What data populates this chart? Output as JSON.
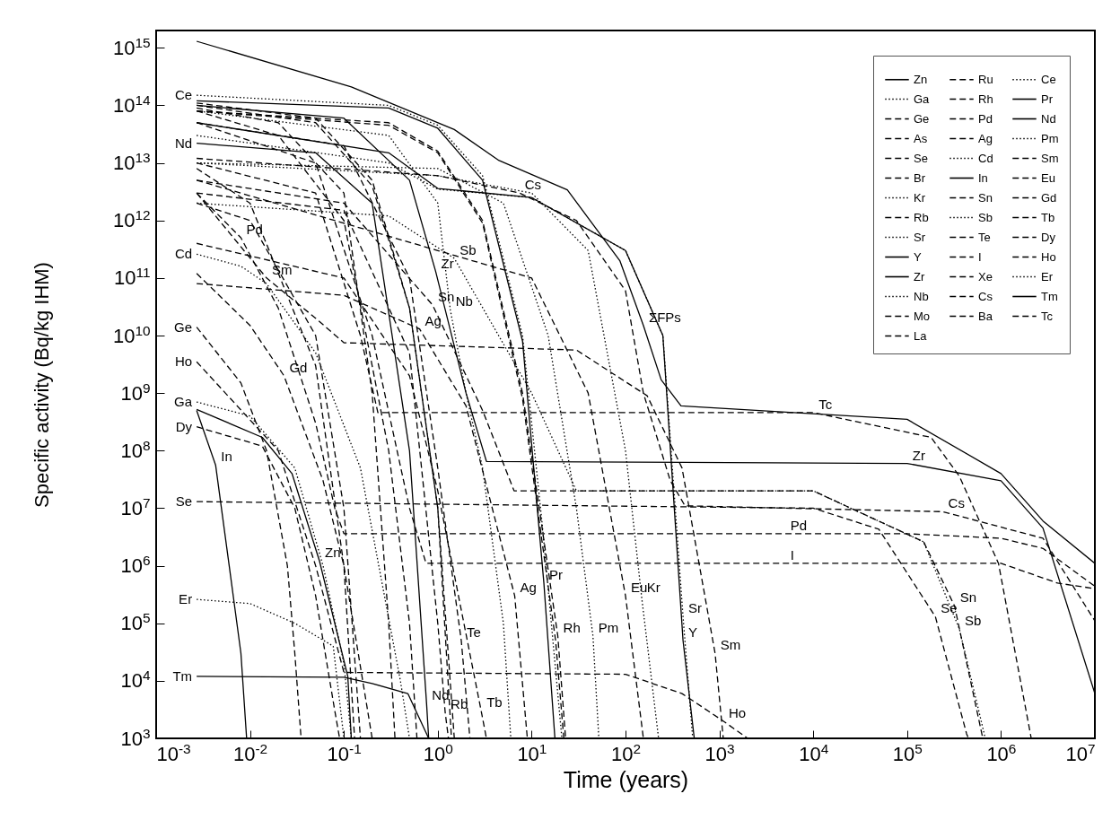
{
  "chart_data": {
    "type": "line",
    "xlabel": "Time (years)",
    "ylabel": "Specific activity (Bq/kg IHM)",
    "log": "xy",
    "legend": "top right",
    "xlim": [
      0.001,
      10000000
    ],
    "ylim": [
      1000,
      2000000000000000.0
    ],
    "xticks": [
      {
        "value": 0.001,
        "label": "10$^{-3}$"
      },
      {
        "value": 0.01,
        "label": "10$^{-2}$"
      },
      {
        "value": 0.1,
        "label": "10$^{-1}$"
      },
      {
        "value": 1,
        "label": "10$^{0}$"
      },
      {
        "value": 10,
        "label": "10$^{1}$"
      },
      {
        "value": 100,
        "label": "10$^{2}$"
      },
      {
        "value": 1000,
        "label": "10$^{3}$"
      },
      {
        "value": 10000,
        "label": "10$^{4}$"
      },
      {
        "value": 100000,
        "label": "10$^{5}$"
      },
      {
        "value": 1000000,
        "label": "10$^{6}$"
      },
      {
        "value": 10000000,
        "label": "10$^{7}$"
      }
    ],
    "yticks": [
      {
        "value": 1000,
        "label": "10$^{3}$"
      },
      {
        "value": 10000,
        "label": "10$^{4}$"
      },
      {
        "value": 100000,
        "label": "10$^{5}$"
      },
      {
        "value": 1000000,
        "label": "10$^{6}$"
      },
      {
        "value": 10000000,
        "label": "10$^{7}$"
      },
      {
        "value": 100000000,
        "label": "10$^{8}$"
      },
      {
        "value": 1000000000,
        "label": "10$^{9}$"
      },
      {
        "value": 10000000000,
        "label": "10$^{10}$"
      },
      {
        "value": 100000000000,
        "label": "10$^{11}$"
      },
      {
        "value": 1000000000000,
        "label": "10$^{12}$"
      },
      {
        "value": 10000000000000,
        "label": "10$^{13}$"
      },
      {
        "value": 100000000000000,
        "label": "10$^{14}$"
      },
      {
        "value": 1000000000000000,
        "label": "10$^{15}$"
      }
    ],
    "series": [
      {
        "name": "Zn",
        "color": "#000000",
        "line_style": "solid",
        "x": [
          0.0027,
          0.0135,
          0.028,
          0.055,
          0.11,
          0.12
        ],
        "values": [
          520000000.0,
          170000000.0,
          40000000.0,
          1200000.0,
          12000.0,
          1000
        ]
      },
      {
        "name": "Ga",
        "color": "#000000",
        "line_style": "dotted",
        "x": [
          0.0027,
          0.01,
          0.03,
          0.06,
          0.1,
          0.12
        ],
        "values": [
          700000000.0,
          400000000.0,
          50000000.0,
          1000000.0,
          20000.0,
          1000
        ]
      },
      {
        "name": "Ge",
        "color": "#000000",
        "line_style": "dashed",
        "x": [
          0.0027,
          0.008,
          0.015,
          0.025,
          0.03,
          0.035
        ],
        "values": [
          14000000000.0,
          1500000000.0,
          100000000.0,
          1000000.0,
          30000.0,
          1000
        ]
      },
      {
        "name": "As",
        "color": "#000000",
        "line_style": "dashed",
        "x": [
          0.0027,
          0.01,
          0.05,
          0.1,
          0.15
        ],
        "values": [
          2000000000000.0,
          1000000000000.0,
          10000000000.0,
          10000000.0,
          1000
        ]
      },
      {
        "name": "Se",
        "color": "#000000",
        "line_style": "dashed",
        "x": [
          0.0027,
          10000,
          50000,
          200000,
          430000,
          450000
        ],
        "values": [
          13000000.0,
          10000000.0,
          4300000.0,
          130000.0,
          1200,
          1000
        ]
      },
      {
        "name": "Br",
        "color": "#000000",
        "line_style": "dashed",
        "x": [
          0.0027,
          0.01,
          0.05,
          0.1,
          0.13
        ],
        "values": [
          8000000000000.0,
          2000000000000.0,
          3000000000.0,
          1000000.0,
          1000
        ]
      },
      {
        "name": "Kr",
        "color": "#000000",
        "line_style": "dotted",
        "x": [
          0.0027,
          1,
          10,
          40,
          100,
          148,
          225
        ],
        "values": [
          10000000000000.0,
          6000000000000.0,
          3000000000000.0,
          300000000000.0,
          100000000.0,
          300000.0,
          1000
        ]
      },
      {
        "name": "Rb",
        "color": "#000000",
        "line_style": "dashed",
        "x": [
          0.0027,
          0.1,
          0.5,
          1,
          1.2,
          1.3
        ],
        "values": [
          3000000000000.0,
          1500000000000.0,
          5000000000.0,
          100000.0,
          2800,
          1000
        ]
      },
      {
        "name": "Sr",
        "color": "#000000",
        "line_style": "dotted",
        "x": [
          0.0027,
          0.3,
          1,
          10,
          100,
          250,
          410,
          520
        ],
        "values": [
          30000000000000.0,
          10000000000000.0,
          3500000000000.0,
          2500000000000.0,
          300000000000.0,
          10000000000.0,
          130000.0,
          1000
        ]
      },
      {
        "name": "Y",
        "color": "#000000",
        "line_style": "solid",
        "x": [
          0.0027,
          0.3,
          1,
          10,
          100,
          250,
          410,
          540
        ],
        "values": [
          50000000000000.0,
          15000000000000.0,
          3600000000000.0,
          2500000000000.0,
          300000000000.0,
          10000000000.0,
          50000.0,
          1000
        ]
      },
      {
        "name": "Zr",
        "color": "#000000",
        "line_style": "solid",
        "x": [
          0.0027,
          0.1,
          0.5,
          0.95,
          2,
          3.3,
          100000,
          1000000,
          2800000,
          10000000
        ],
        "values": [
          100000000000000.0,
          60000000000000.0,
          5000000000000.0,
          130000000000.0,
          1000000000.0,
          65000000.0,
          60000000.0,
          30000000.0,
          4500000.0,
          6000
        ]
      },
      {
        "name": "Nb",
        "color": "#000000",
        "line_style": "dotted",
        "x": [
          0.0027,
          0.3,
          1,
          1.36,
          2,
          3,
          5,
          6
        ],
        "values": [
          80000000000000.0,
          30000000000000.0,
          2000000000000.0,
          28000000000.0,
          1000000000.0,
          50000000.0,
          100000.0,
          1000
        ]
      },
      {
        "name": "Mo",
        "color": "#000000",
        "line_style": "dashed",
        "x": [
          0.0027,
          0.02,
          0.1,
          0.2,
          0.3,
          0.35
        ],
        "values": [
          90000000000000.0,
          50000000000000.0,
          3000000000000.0,
          1000000000.0,
          100000.0,
          1000
        ]
      },
      {
        "name": "Tc",
        "color": "#000000",
        "line_style": "dashed",
        "x": [
          0.0027,
          0.05,
          0.15,
          0.23,
          10000,
          180000,
          360000,
          940000,
          2100000
        ],
        "values": [
          10000000000000.0,
          3000000000000.0,
          10000000000.0,
          460000000.0,
          460000000.0,
          170000000.0,
          36000000.0,
          1100000.0,
          1000
        ]
      },
      {
        "name": "Ru",
        "color": "#000000",
        "line_style": "dashed",
        "x": [
          0.0027,
          0.3,
          1,
          3,
          8,
          18,
          22
        ],
        "values": [
          80000000000000.0,
          45000000000000.0,
          15000000000000.0,
          900000000000.0,
          800000000.0,
          50000.0,
          1000
        ]
      },
      {
        "name": "Rh",
        "color": "#000000",
        "line_style": "dashed",
        "x": [
          0.0027,
          0.3,
          1,
          3,
          8,
          19,
          23
        ],
        "values": [
          80000000000000.0,
          50000000000000.0,
          16000000000000.0,
          1000000000000.0,
          1000000000.0,
          60000.0,
          1000
        ]
      },
      {
        "name": "Pd",
        "color": "#000000",
        "line_style": "dashed",
        "x": [
          0.0027,
          0.008,
          0.02,
          0.05,
          0.08,
          0.1,
          100000,
          1000000,
          2800000,
          10000000
        ],
        "values": [
          3000000000000.0,
          500000000000.0,
          30000000000.0,
          300000000.0,
          10000000.0,
          3600000.0,
          3600000.0,
          3000000.0,
          2000000.0,
          440000.0
        ]
      },
      {
        "name": "Ag",
        "color": "#000000",
        "line_style": "dashed",
        "x": [
          0.0027,
          0.1,
          0.64,
          2,
          6.6,
          9
        ],
        "values": [
          80000000000.0,
          50000000000.0,
          13000000000.0,
          600000000.0,
          300000.0,
          1000
        ]
      },
      {
        "name": "Cd",
        "color": "#000000",
        "line_style": "dotted",
        "x": [
          0.0027,
          0.008,
          0.015,
          0.05,
          0.15,
          0.4,
          0.5
        ],
        "values": [
          260000000000.0,
          160000000000.0,
          80000000000.0,
          5000000000.0,
          50000000.0,
          10000.0,
          1000
        ]
      },
      {
        "name": "In",
        "color": "#000000",
        "line_style": "solid",
        "x": [
          0.0027,
          0.0043,
          0.006,
          0.008,
          0.0092
        ],
        "values": [
          500000000.0,
          56000000.0,
          1000000.0,
          30000.0,
          1000
        ]
      },
      {
        "name": "Sn",
        "color": "#000000",
        "line_style": "dashed",
        "x": [
          0.0027,
          0.1,
          0.88,
          3,
          6.5,
          10000,
          150000,
          320000,
          640000
        ],
        "values": [
          5000000000000.0,
          2000000000000.0,
          34000000000.0,
          500000000.0,
          20000000.0,
          20000000.0,
          2600000.0,
          200000.0,
          1000
        ]
      },
      {
        "name": "Sb",
        "color": "#000000",
        "line_style": "dotted",
        "x": [
          0.0027,
          0.3,
          1.5,
          10,
          30,
          10000,
          150000,
          360000,
          680000
        ],
        "values": [
          2000000000000.0,
          1200000000000.0,
          220000000000.0,
          1000000000.0,
          20000000.0,
          20000000.0,
          2600000.0,
          80000.0,
          1000
        ]
      },
      {
        "name": "Te",
        "color": "#000000",
        "line_style": "dashed",
        "x": [
          0.0027,
          0.1,
          0.5,
          1,
          1.78,
          2.2
        ],
        "values": [
          50000000000000.0,
          20000000000000.0,
          100000000000.0,
          50000000.0,
          50000.0,
          1000
        ]
      },
      {
        "name": "I",
        "color": "#000000",
        "line_style": "dashed",
        "x": [
          0.0027,
          0.05,
          0.2,
          0.5,
          0.75,
          1000000,
          4000000,
          10000000
        ],
        "values": [
          50000000000000.0,
          10000000000000.0,
          10000000000.0,
          10000000.0,
          1100000.0,
          1100000.0,
          500000.0,
          400000.0
        ]
      },
      {
        "name": "Xe",
        "color": "#000000",
        "line_style": "dashed",
        "x": [
          0.0027,
          0.02,
          0.1,
          0.3,
          0.5,
          0.6
        ],
        "values": [
          80000000000000.0,
          30000000000000.0,
          1000000000000.0,
          100000000.0,
          100000.0,
          1000
        ]
      },
      {
        "name": "Cs",
        "color": "#000000",
        "line_style": "dashed",
        "x": [
          0.0027,
          1,
          7.4,
          30,
          100,
          155,
          300,
          430,
          240000,
          2800000,
          10000000
        ],
        "values": [
          12000000000000.0,
          6000000000000.0,
          3000000000000.0,
          1000000000000.0,
          60000000000.0,
          1000000000.0,
          30000000.0,
          11000000.0,
          8700000.0,
          3000000.0,
          110000.0
        ]
      },
      {
        "name": "Ba",
        "color": "#000000",
        "line_style": "dashed",
        "x": [
          0.0027,
          0.05,
          0.2,
          0.5,
          1,
          1.5
        ],
        "values": [
          100000000000000.0,
          50000000000000.0,
          4000000000000.0,
          30000000000.0,
          10000000.0,
          1000
        ]
      },
      {
        "name": "La",
        "color": "#000000",
        "line_style": "dashed",
        "x": [
          0.0027,
          0.05,
          0.2,
          0.5,
          1,
          1.4
        ],
        "values": [
          110000000000000.0,
          60000000000000.0,
          5000000000000.0,
          30000000000.0,
          10000000.0,
          1000
        ]
      },
      {
        "name": "Ce",
        "color": "#000000",
        "line_style": "dotted",
        "x": [
          0.0027,
          0.3,
          1,
          3,
          8,
          13,
          21
        ],
        "values": [
          150000000000000.0,
          100000000000000.0,
          45000000000000.0,
          6000000000000.0,
          10000000000.0,
          5000000.0,
          1000
        ]
      },
      {
        "name": "Pr",
        "color": "#000000",
        "line_style": "solid",
        "x": [
          0.0027,
          0.3,
          1,
          3,
          8,
          13.5,
          17.7
        ],
        "values": [
          120000000000000.0,
          90000000000000.0,
          40000000000000.0,
          5000000000000.0,
          8000000000.0,
          500000.0,
          1000
        ]
      },
      {
        "name": "Nd",
        "color": "#000000",
        "line_style": "solid",
        "x": [
          0.0027,
          0.05,
          0.2,
          0.5,
          0.76,
          0.8
        ],
        "values": [
          22000000000000.0,
          15000000000000.0,
          2000000000000.0,
          100000000.0,
          4000,
          1000
        ]
      },
      {
        "name": "Pm",
        "color": "#000000",
        "line_style": "dotted",
        "x": [
          0.0027,
          1,
          5,
          15,
          30,
          45,
          52
        ],
        "values": [
          10000000000000.0,
          8000000000000.0,
          2000000000000.0,
          10000000000.0,
          10000000.0,
          60000.0,
          1000
        ]
      },
      {
        "name": "Sm",
        "color": "#000000",
        "line_style": "dashed",
        "x": [
          0.0027,
          0.015,
          0.05,
          0.1,
          30,
          170,
          400,
          900,
          1100
        ],
        "values": [
          3000000000000.0,
          100000000000.0,
          20000000000.0,
          7500000000.0,
          5600000000.0,
          900000000.0,
          50000000.0,
          30000.0,
          1000
        ]
      },
      {
        "name": "Eu",
        "color": "#000000",
        "line_style": "dashed",
        "x": [
          0.0027,
          1,
          10,
          40,
          100,
          155
        ],
        "values": [
          5000000000000.0,
          300000000000.0,
          100000000000.0,
          1000000000.0,
          300000.0,
          1000
        ]
      },
      {
        "name": "Gd",
        "color": "#000000",
        "line_style": "dashed",
        "x": [
          0.0027,
          0.01,
          0.023,
          0.06,
          0.1,
          0.2
        ],
        "values": [
          120000000000.0,
          15000000000.0,
          2000000000.0,
          30000000.0,
          1000000.0,
          1000
        ]
      },
      {
        "name": "Tb",
        "color": "#000000",
        "line_style": "dashed",
        "x": [
          0.0027,
          0.1,
          0.5,
          1,
          2.9,
          3.3
        ],
        "values": [
          400000000000.0,
          100000000000.0,
          2000000000.0,
          20000000.0,
          3000,
          1000
        ]
      },
      {
        "name": "Dy",
        "color": "#000000",
        "line_style": "dashed",
        "x": [
          0.0027,
          0.0135,
          0.03,
          0.05,
          0.08,
          0.09
        ],
        "values": [
          260000000.0,
          120000000.0,
          10000000.0,
          300000.0,
          3000,
          1000
        ]
      },
      {
        "name": "Ho",
        "color": "#000000",
        "line_style": "dashed",
        "x": [
          0.0027,
          0.02,
          0.05,
          0.1,
          100,
          400,
          1100,
          2000
        ],
        "values": [
          3500000000.0,
          100000000.0,
          1000000.0,
          14000.0,
          13000.0,
          6000,
          2000,
          1000
        ]
      },
      {
        "name": "Er",
        "color": "#000000",
        "line_style": "dotted",
        "x": [
          0.0027,
          0.01,
          0.03,
          0.077,
          0.1
        ],
        "values": [
          260000.0,
          220000.0,
          100000.0,
          40000.0,
          1000
        ]
      },
      {
        "name": "Tm",
        "color": "#000000",
        "line_style": "solid",
        "x": [
          0.0027,
          0.1,
          0.2,
          0.48,
          0.8
        ],
        "values": [
          12000.0,
          11500.0,
          9000,
          6000,
          1000
        ]
      },
      {
        "color": "#000000",
        "line_style": "solid",
        "x": [
          0.0027,
          0.12,
          1.5,
          4.5,
          24,
          87,
          155,
          240,
          390,
          100000,
          1000000,
          2800000,
          10000000
        ],
        "values": [
          1300000000000000.0,
          210000000000000.0,
          38000000000000.0,
          11000000000000.0,
          3400000000000.0,
          200000000000.0,
          15000000000.0,
          1700000000.0,
          600000000.0,
          350000000.0,
          40000000.0,
          6000000.0,
          1100000.0
        ]
      }
    ],
    "annotations": [
      {
        "text": "Ce",
        "x": 0.0027,
        "y": 150000000000000.0
      },
      {
        "text": "Nd",
        "x": 0.0027,
        "y": 22000000000000.0
      },
      {
        "text": "Pd",
        "x": 0.008,
        "y": 500000000000.0
      },
      {
        "text": "Cd",
        "x": 0.0027,
        "y": 260000000000.0
      },
      {
        "text": "Sm",
        "x": 0.015,
        "y": 100000000000.0
      },
      {
        "text": "Zr",
        "x": 0.95,
        "y": 130000000000.0
      },
      {
        "text": "Sb",
        "x": 1.5,
        "y": 220000000000.0
      },
      {
        "text": "Sn",
        "x": 0.88,
        "y": 34000000000.0
      },
      {
        "text": "Nb",
        "x": 1.36,
        "y": 28000000000.0
      },
      {
        "text": "Ag",
        "x": 0.64,
        "y": 13000000000.0
      },
      {
        "text": "Ge",
        "x": 0.0027,
        "y": 14000000000.0
      },
      {
        "text": "Ho",
        "x": 0.0027,
        "y": 3500000000.0
      },
      {
        "text": "Gd",
        "x": 0.023,
        "y": 2000000000.0
      },
      {
        "text": "Ga",
        "x": 0.0027,
        "y": 700000000.0
      },
      {
        "text": "Dy",
        "x": 0.0027,
        "y": 260000000.0
      },
      {
        "text": "In",
        "x": 0.0043,
        "y": 56000000.0
      },
      {
        "text": "Se",
        "x": 0.0027,
        "y": 13000000.0
      },
      {
        "text": "Zn",
        "x": 0.055,
        "y": 1200000.0
      },
      {
        "text": "Er",
        "x": 0.0027,
        "y": 260000.0
      },
      {
        "text": "Tm",
        "x": 0.0027,
        "y": 12000.0
      },
      {
        "text": "Te",
        "x": 1.78,
        "y": 50000.0
      },
      {
        "text": "Nd",
        "x": 0.76,
        "y": 4000
      },
      {
        "text": "Tb",
        "x": 2.9,
        "y": 3000
      },
      {
        "text": "Rb",
        "x": 1.2,
        "y": 2800
      },
      {
        "text": "Pr",
        "x": 13.5,
        "y": 500000.0
      },
      {
        "text": "Ag",
        "x": 6.6,
        "y": 300000.0
      },
      {
        "text": "Rh",
        "x": 19,
        "y": 60000.0
      },
      {
        "text": "Pm",
        "x": 45,
        "y": 60000.0
      },
      {
        "text": "Eu",
        "x": 100,
        "y": 300000.0
      },
      {
        "text": "Kr",
        "x": 148,
        "y": 300000.0
      },
      {
        "text": "Sr",
        "x": 410,
        "y": 130000.0
      },
      {
        "text": "Y",
        "x": 410,
        "y": 50000.0
      },
      {
        "text": "Sm",
        "x": 900,
        "y": 30000.0
      },
      {
        "text": "Ho",
        "x": 1100,
        "y": 2000
      },
      {
        "text": "Cs",
        "x": 7.4,
        "y": 3000000000000.0
      },
      {
        "text": "ΣFPs",
        "x": 155,
        "y": 15000000000.0
      },
      {
        "text": "Tc",
        "x": 10000,
        "y": 460000000.0
      },
      {
        "text": "Zr",
        "x": 100000,
        "y": 60000000.0
      },
      {
        "text": "Cs",
        "x": 240000,
        "y": 8700000.0
      },
      {
        "text": "Pd",
        "x": 5000,
        "y": 3600000.0
      },
      {
        "text": "I",
        "x": 5000,
        "y": 1100000.0
      },
      {
        "text": "Se",
        "x": 200000,
        "y": 130000.0
      },
      {
        "text": "Sn",
        "x": 320000,
        "y": 200000.0
      },
      {
        "text": "Sb",
        "x": 360000,
        "y": 80000.0
      }
    ]
  }
}
